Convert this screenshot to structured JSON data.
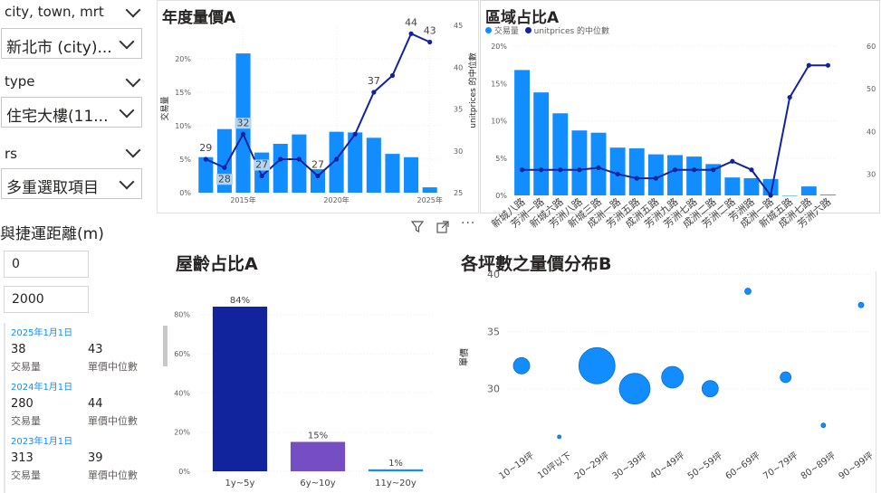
{
  "slicers": {
    "city": {
      "title": "city, town, mrt",
      "value": "新北市 (city)..."
    },
    "type": {
      "title": "type",
      "value": "住宅大樓(11..."
    },
    "rs": {
      "title": "rs",
      "value": "多重選取項目"
    },
    "distance": {
      "title": "與捷運距離(m)",
      "min": "0",
      "max": "2000"
    }
  },
  "cards": [
    {
      "date": "2025年1月1日",
      "count": "38",
      "count_label": "交易量",
      "price": "43",
      "price_label": "單價中位數"
    },
    {
      "date": "2024年1月1日",
      "count": "280",
      "count_label": "交易量",
      "price": "44",
      "price_label": "單價中位數"
    },
    {
      "date": "2023年1月1日",
      "count": "313",
      "count_label": "交易量",
      "price": "39",
      "price_label": "單價中位數"
    }
  ],
  "colors": {
    "bar": "#118dff",
    "line": "#12239e",
    "purple": "#744ec2",
    "dark": "#12239e"
  },
  "visual_header": {
    "icons": [
      "filter-icon",
      "focus-mode-icon",
      "more-options-icon"
    ]
  },
  "chart_data": [
    {
      "id": "annual",
      "type": "bar",
      "title": "年度量價A",
      "ylabel": "交易量",
      "y2label": "unitprices 的中位數",
      "ylim": [
        0,
        0.25
      ],
      "y2lim": [
        25,
        45
      ],
      "x_ticks": [
        "2015年",
        "2020年",
        "2025年"
      ],
      "yticks": [
        "0%",
        "5%",
        "10%",
        "15%",
        "20%"
      ],
      "y2ticks": [
        "25",
        "30",
        "35",
        "40",
        "45"
      ],
      "x": [
        2013,
        2014,
        2015,
        2016,
        2017,
        2018,
        2019,
        2020,
        2021,
        2022,
        2023,
        2024,
        2025
      ],
      "values": [
        0.053,
        0.095,
        0.208,
        0.06,
        0.073,
        0.087,
        0.035,
        0.091,
        0.09,
        0.082,
        0.058,
        0.053,
        0.008
      ],
      "line": [
        29,
        28,
        32,
        27,
        29,
        29,
        27,
        29,
        32,
        37,
        39,
        44,
        43
      ],
      "data_labels": [
        {
          "i": 0,
          "text": "29"
        },
        {
          "i": 1,
          "text": "28"
        },
        {
          "i": 2,
          "text": "32"
        },
        {
          "i": 3,
          "text": "27"
        },
        {
          "i": 6,
          "text": "27"
        },
        {
          "i": 9,
          "text": "37"
        },
        {
          "i": 11,
          "text": "44"
        },
        {
          "i": 12,
          "text": "43"
        }
      ]
    },
    {
      "id": "region",
      "type": "bar",
      "title": "區域占比A",
      "legend": [
        "交易量",
        "unitprices 的中位數"
      ],
      "ylim": [
        0,
        0.2
      ],
      "y2lim": [
        25,
        60
      ],
      "yticks": [
        "0%",
        "5%",
        "10%",
        "15%",
        "20%"
      ],
      "y2ticks": [
        "30",
        "40",
        "50",
        "60"
      ],
      "categories": [
        "新城八路",
        "芳洲一路",
        "新城六路",
        "芳洲八路",
        "新城三路",
        "成洲一路",
        "芳洲五路",
        "成洲五路",
        "芳洲九路",
        "芳洲七路",
        "成洲二路",
        "芳洲二路",
        "芳洲路",
        "成洲一路",
        "新城五路",
        "成洲七路",
        "芳洲六路"
      ],
      "values": [
        0.168,
        0.138,
        0.11,
        0.087,
        0.084,
        0.064,
        0.063,
        0.055,
        0.054,
        0.052,
        0.042,
        0.024,
        0.023,
        0.022,
        0.0,
        0.012,
        0.001
      ],
      "line": [
        31,
        31,
        31,
        31,
        31.5,
        30,
        29,
        29,
        31,
        31,
        31,
        33,
        31,
        25,
        48,
        55.5,
        55.5
      ]
    },
    {
      "id": "age",
      "type": "bar",
      "title": "屋齡占比A",
      "ylim": [
        0,
        0.9
      ],
      "yticks": [
        "0%",
        "20%",
        "40%",
        "60%",
        "80%"
      ],
      "categories": [
        "1y~5y",
        "6y~10y",
        "11y~20y"
      ],
      "values": [
        0.84,
        0.15,
        0.01
      ],
      "data_labels": [
        "84%",
        "15%",
        "1%"
      ],
      "colors": [
        "#12239e",
        "#744ec2",
        "#118dff"
      ]
    },
    {
      "id": "size",
      "type": "scatter",
      "title": "各坪數之量價分布B",
      "ylabel": "單價",
      "ylim": [
        25,
        40
      ],
      "yticks": [
        "30",
        "35",
        "40"
      ],
      "categories": [
        "10~19坪",
        "10坪以下",
        "20~29坪",
        "30~39坪",
        "40~49坪",
        "50~59坪",
        "60~69坪",
        "70~79坪",
        "80~89坪",
        "90~99坪"
      ],
      "points": [
        {
          "c": 0,
          "y": 32,
          "r": 9
        },
        {
          "c": 1,
          "y": 25.8,
          "r": 2
        },
        {
          "c": 2,
          "y": 32,
          "r": 20
        },
        {
          "c": 3,
          "y": 30,
          "r": 17
        },
        {
          "c": 4,
          "y": 31,
          "r": 12
        },
        {
          "c": 5,
          "y": 30,
          "r": 9
        },
        {
          "c": 6,
          "y": 38.5,
          "r": 3.5
        },
        {
          "c": 7,
          "y": 31,
          "r": 6
        },
        {
          "c": 8,
          "y": 26.8,
          "r": 2.5
        },
        {
          "c": 9,
          "y": 37.3,
          "r": 3
        }
      ]
    }
  ]
}
